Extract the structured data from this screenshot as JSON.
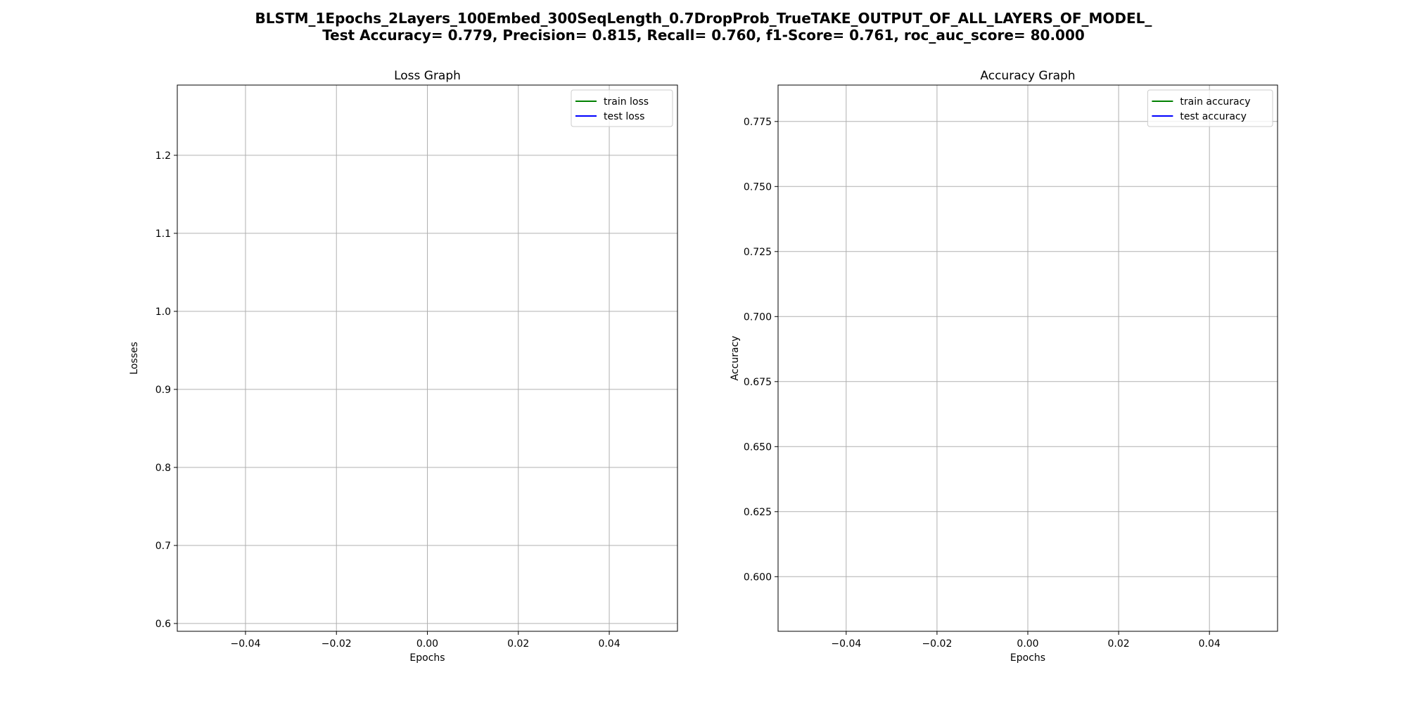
{
  "figure": {
    "title_line1": "BLSTM_1Epochs_2Layers_100Embed_300SeqLength_0.7DropProb_TrueTAKE_OUTPUT_OF_ALL_LAYERS_OF_MODEL_",
    "title_line2": "Test Accuracy= 0.779,  Precision= 0.815,  Recall= 0.760,  f1-Score= 0.761,  roc_auc_score= 80.000"
  },
  "chart_data": [
    {
      "type": "line",
      "title": "Loss Graph",
      "xlabel": "Epochs",
      "ylabel": "Losses",
      "xlim": [
        -0.055,
        0.055
      ],
      "ylim": [
        0.59,
        1.29
      ],
      "xticks": [
        -0.04,
        -0.02,
        0.0,
        0.02,
        0.04
      ],
      "xtick_labels": [
        "−0.04",
        "−0.02",
        "0.00",
        "0.02",
        "0.04"
      ],
      "yticks": [
        0.6,
        0.7,
        0.8,
        0.9,
        1.0,
        1.1,
        1.2
      ],
      "ytick_labels": [
        "0.6",
        "0.7",
        "0.8",
        "0.9",
        "1.0",
        "1.1",
        "1.2"
      ],
      "grid": true,
      "legend_position": "top-right",
      "series": [
        {
          "name": "train loss",
          "color": "#008000",
          "x": [],
          "y": []
        },
        {
          "name": "test loss",
          "color": "#0000ff",
          "x": [],
          "y": []
        }
      ]
    },
    {
      "type": "line",
      "title": "Accuracy Graph",
      "xlabel": "Epochs",
      "ylabel": "Accuracy",
      "xlim": [
        -0.055,
        0.055
      ],
      "ylim": [
        0.579,
        0.789
      ],
      "xticks": [
        -0.04,
        -0.02,
        0.0,
        0.02,
        0.04
      ],
      "xtick_labels": [
        "−0.04",
        "−0.02",
        "0.00",
        "0.02",
        "0.04"
      ],
      "yticks": [
        0.6,
        0.625,
        0.65,
        0.675,
        0.7,
        0.725,
        0.75,
        0.775
      ],
      "ytick_labels": [
        "0.600",
        "0.625",
        "0.650",
        "0.675",
        "0.700",
        "0.725",
        "0.750",
        "0.775"
      ],
      "grid": true,
      "legend_position": "top-right",
      "series": [
        {
          "name": "train accuracy",
          "color": "#008000",
          "x": [],
          "y": []
        },
        {
          "name": "test accuracy",
          "color": "#0000ff",
          "x": [],
          "y": []
        }
      ]
    }
  ]
}
